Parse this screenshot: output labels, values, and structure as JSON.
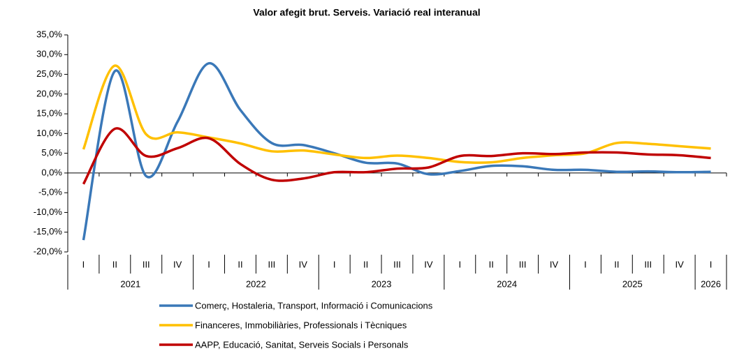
{
  "chart_data": {
    "type": "line",
    "title": "Valor afegit brut.  Serveis. Variació real interanual",
    "categories": [
      "I",
      "II",
      "III",
      "IV",
      "I",
      "II",
      "III",
      "IV",
      "I",
      "II",
      "III",
      "IV",
      "I",
      "II",
      "III",
      "IV",
      "I",
      "II",
      "III",
      "IV",
      "I"
    ],
    "years": [
      "2021",
      "2022",
      "2023",
      "2024",
      "2025",
      "2026"
    ],
    "ylim": [
      -20,
      35
    ],
    "yticks": [
      {
        "value": -20,
        "label": "-20,0%"
      },
      {
        "value": -15,
        "label": "-15,0%"
      },
      {
        "value": -10,
        "label": "-10,0%"
      },
      {
        "value": -5,
        "label": "-5,0%"
      },
      {
        "value": 0,
        "label": "0,0%"
      },
      {
        "value": 5,
        "label": "5,0%"
      },
      {
        "value": 10,
        "label": "10,0%"
      },
      {
        "value": 15,
        "label": "15,0%"
      },
      {
        "value": 20,
        "label": "20,0%"
      },
      {
        "value": 25,
        "label": "25,0%"
      },
      {
        "value": 30,
        "label": "30,0%"
      },
      {
        "value": 35,
        "label": "35,0%"
      }
    ],
    "smooth": true,
    "series": [
      {
        "name": "Comerç, Hostaleria, Transport, Informació i Comunicacions",
        "color": "#3a78b8",
        "values": [
          -17,
          25.8,
          -0.8,
          13,
          27.8,
          16,
          7.6,
          7.1,
          5,
          2.6,
          2.4,
          -0.3,
          0.5,
          1.8,
          1.7,
          0.8,
          0.8,
          0.3,
          0.4,
          0.2,
          0.3
        ]
      },
      {
        "name": "Financeres, Immobiliàries, Professionals i Tècniques",
        "color": "#ffc000",
        "values": [
          6,
          27.2,
          9.8,
          10.3,
          9,
          7.5,
          5.5,
          5.7,
          4.7,
          3.8,
          4.4,
          3.8,
          2.8,
          2.7,
          3.8,
          4.5,
          5,
          7.6,
          7.4,
          6.8,
          6.2
        ]
      },
      {
        "name": "AAPP, Educació, Sanitat, Serveis Socials i Personals",
        "color": "#c00000",
        "values": [
          -2.8,
          11.2,
          4.3,
          6.3,
          8.8,
          2.3,
          -1.7,
          -1.4,
          0.2,
          0.2,
          1.1,
          1.4,
          4.3,
          4.3,
          5,
          4.8,
          5.2,
          5.2,
          4.7,
          4.5,
          3.8
        ]
      }
    ]
  }
}
